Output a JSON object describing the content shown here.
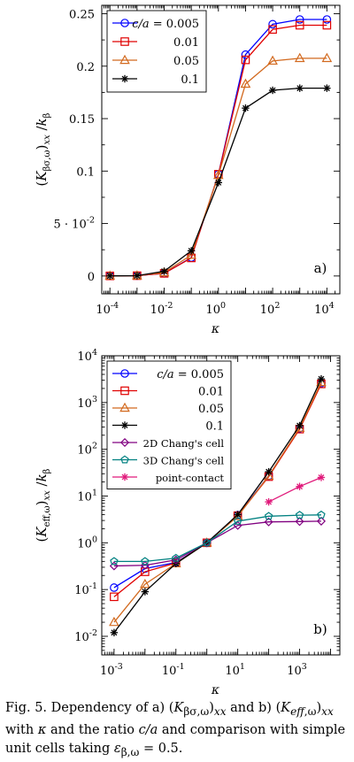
{
  "chart_data": [
    {
      "type": "line",
      "panel_label": "a)",
      "xlabel": "κ",
      "ylabel": "(K_{βσ,ω})_xx / k_β",
      "xscale": "log",
      "yscale": "linear",
      "xlim": [
        5e-05,
        30000
      ],
      "ylim": [
        -0.017,
        0.258
      ],
      "x": [
        0.0001,
        0.001,
        0.01,
        0.1,
        1,
        10,
        100,
        1000,
        10000
      ],
      "xtick_labels": [
        "10^-4",
        "10^-2",
        "10^0",
        "10^2",
        "10^4"
      ],
      "ytick_labels": [
        "0",
        "5·10^-2",
        "0.1",
        "0.15",
        "0.2",
        "0.25"
      ],
      "legend_position": "top-left",
      "series": [
        {
          "name": "c/a = 0.005",
          "color": "#0000ff",
          "marker": "circle",
          "values": [
            0.0001,
            0.0003,
            0.0025,
            0.0175,
            0.097,
            0.211,
            0.24,
            0.2445,
            0.2445
          ]
        },
        {
          "name": "0.01",
          "color": "#e00000",
          "marker": "square",
          "values": [
            0.0001,
            0.0003,
            0.0025,
            0.0172,
            0.097,
            0.206,
            0.235,
            0.239,
            0.239
          ]
        },
        {
          "name": "0.05",
          "color": "#d2691e",
          "marker": "triangle",
          "values": [
            0.0001,
            0.0003,
            0.0032,
            0.02,
            0.096,
            0.183,
            0.205,
            0.2075,
            0.2075
          ]
        },
        {
          "name": "0.1",
          "color": "#000000",
          "marker": "star",
          "values": [
            0.0001,
            0.0003,
            0.0045,
            0.024,
            0.089,
            0.16,
            0.177,
            0.179,
            0.179
          ]
        }
      ]
    },
    {
      "type": "line",
      "panel_label": "b)",
      "xlabel": "κ",
      "ylabel": "(K_{eff,ω})_xx / k_β",
      "xscale": "log",
      "yscale": "log",
      "xlim": [
        0.0004,
        20000
      ],
      "ylim": [
        0.004,
        10000
      ],
      "xtick_labels": [
        "10^-3",
        "10^-1",
        "10^1",
        "10^3"
      ],
      "ytick_labels": [
        "10^-2",
        "10^-1",
        "10^0",
        "10^1",
        "10^2",
        "10^3",
        "10^4"
      ],
      "legend_position": "top-left",
      "series": [
        {
          "name": "c/a = 0.005",
          "color": "#0000ff",
          "marker": "circle",
          "x": [
            0.001,
            0.01,
            0.1,
            1,
            10,
            100,
            1000,
            5000
          ],
          "values": [
            0.11,
            0.28,
            0.38,
            1.0,
            3.9,
            27,
            280,
            2600
          ]
        },
        {
          "name": "0.01",
          "color": "#e00000",
          "marker": "square",
          "x": [
            0.001,
            0.01,
            0.1,
            1,
            10,
            100,
            1000,
            5000
          ],
          "values": [
            0.07,
            0.24,
            0.37,
            1.0,
            3.8,
            26,
            270,
            2500
          ]
        },
        {
          "name": "0.05",
          "color": "#d2691e",
          "marker": "triangle",
          "x": [
            0.001,
            0.01,
            0.1,
            1,
            10,
            100,
            1000,
            5000
          ],
          "values": [
            0.02,
            0.13,
            0.36,
            1.0,
            3.7,
            27,
            285,
            2700
          ]
        },
        {
          "name": "0.1",
          "color": "#000000",
          "marker": "star",
          "x": [
            0.001,
            0.01,
            0.1,
            1,
            10,
            100,
            1000,
            5000
          ],
          "values": [
            0.012,
            0.09,
            0.36,
            1.0,
            4.0,
            33,
            320,
            3200
          ]
        },
        {
          "name": "2D Chang's cell",
          "color": "#800080",
          "marker": "diamond",
          "x": [
            0.001,
            0.01,
            0.1,
            1,
            10,
            100,
            1000,
            5000
          ],
          "values": [
            0.32,
            0.33,
            0.43,
            1.0,
            2.35,
            2.8,
            2.85,
            2.9
          ]
        },
        {
          "name": "3D Chang's cell",
          "color": "#008080",
          "marker": "pentagon",
          "x": [
            0.001,
            0.01,
            0.1,
            1,
            10,
            100,
            1000,
            5000
          ],
          "values": [
            0.4,
            0.4,
            0.47,
            1.0,
            2.9,
            3.7,
            3.9,
            3.95
          ]
        },
        {
          "name": "point-contact",
          "color": "#e0197a",
          "marker": "star",
          "x": [
            100,
            1000,
            5000
          ],
          "values": [
            7.5,
            16,
            25
          ]
        }
      ]
    }
  ],
  "caption": {
    "fig_label": "Fig. 5.",
    "text": "Dependency of a) (K_{βσ,ω})_xx and b) (K_{eff,ω})_xx with κ and the ratio c/a and comparison with simple unit cells taking ε_{β,ω} = 0.5."
  }
}
